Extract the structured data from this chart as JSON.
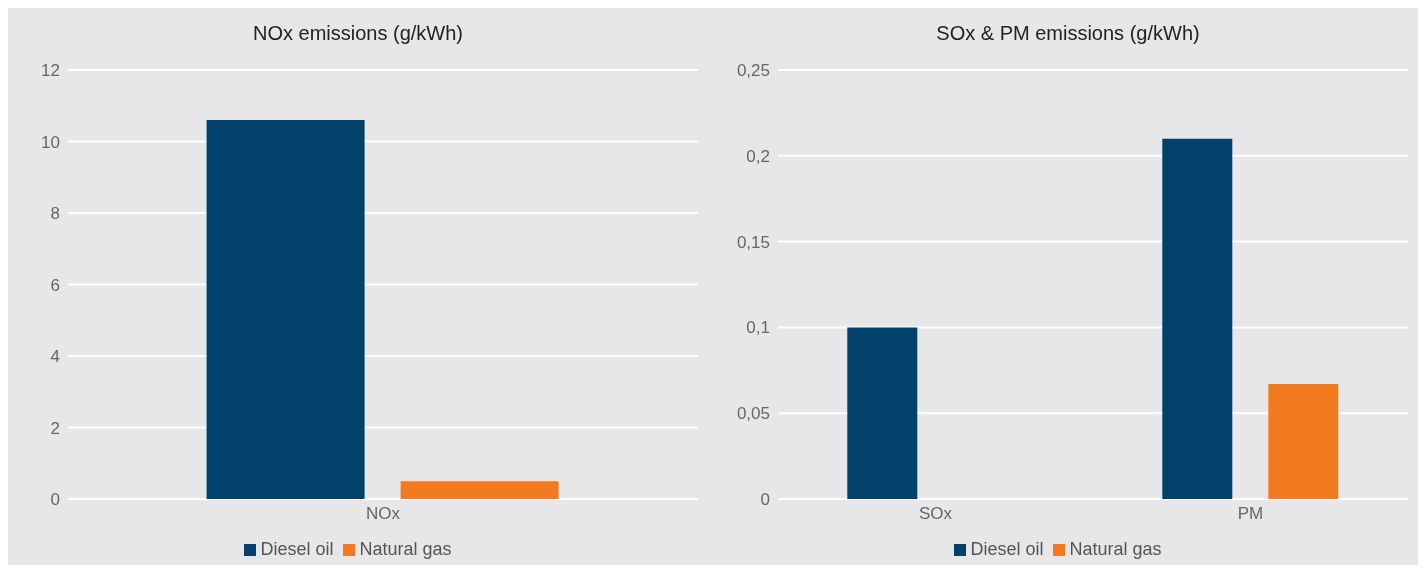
{
  "chart_data": [
    {
      "type": "bar",
      "title": "NOx emissions (g/kWh)",
      "categories": [
        "NOx"
      ],
      "series": [
        {
          "name": "Diesel oil",
          "color": "#01416a",
          "values": [
            10.6
          ]
        },
        {
          "name": "Natural gas",
          "color": "#f47a20",
          "values": [
            0.5
          ]
        }
      ],
      "ylim": [
        0,
        12
      ],
      "yticks": [
        0,
        2,
        4,
        6,
        8,
        10,
        12
      ],
      "grid": "y",
      "legend": "bottom"
    },
    {
      "type": "bar",
      "title": "SOx & PM emissions (g/kWh)",
      "categories": [
        "SOx",
        "PM"
      ],
      "series": [
        {
          "name": "Diesel oil",
          "color": "#01416a",
          "values": [
            0.1,
            0.21
          ]
        },
        {
          "name": "Natural gas",
          "color": "#f47a20",
          "values": [
            0,
            0.067
          ]
        }
      ],
      "ylim": [
        0,
        0.25
      ],
      "yticks": [
        0,
        {
          "value": 0.05,
          "label": "0,05"
        },
        {
          "value": 0.1,
          "label": "0,1"
        },
        {
          "value": 0.15,
          "label": "0,15"
        },
        {
          "value": 0.2,
          "label": "0,2"
        },
        {
          "value": 0.25,
          "label": "0,25"
        }
      ],
      "grid": "y",
      "legend": "bottom"
    }
  ]
}
